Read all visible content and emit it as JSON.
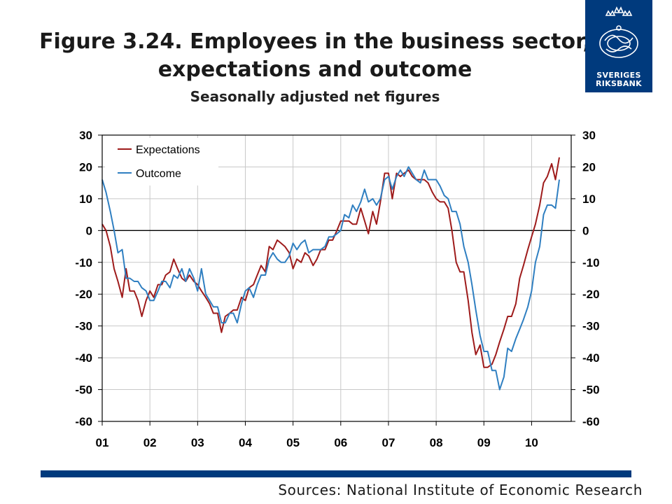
{
  "title_line1": "Figure 3.24. Employees in the business sector,",
  "title_line2": "expectations and outcome",
  "subtitle": "Seasonally adjusted net figures",
  "logo": {
    "line1": "SVERIGES",
    "line2": "RIKSBANK"
  },
  "source": "Sources: National Institute of Economic Research",
  "colors": {
    "expectations": "#9e1b1b",
    "outcome": "#2f7fc1",
    "brand": "#003a7d",
    "grid": "#c8c8c8"
  },
  "chart_data": {
    "type": "line",
    "ylim": [
      -60,
      30
    ],
    "y_ticks": [
      30,
      20,
      10,
      0,
      -10,
      -20,
      -30,
      -40,
      -50,
      -60
    ],
    "y_tick_labels": [
      "30",
      "20",
      "10",
      "0",
      "-10",
      "-20",
      "-30",
      "-40",
      "-50",
      "-60"
    ],
    "x_ticks": [
      2001,
      2002,
      2003,
      2004,
      2005,
      2006,
      2007,
      2008,
      2009,
      2010
    ],
    "x_tick_labels": [
      "01",
      "02",
      "03",
      "04",
      "05",
      "06",
      "07",
      "08",
      "09",
      "10"
    ],
    "grid": true,
    "legend_position": "top-left",
    "series": [
      {
        "name": "Expectations",
        "color_key": "expectations",
        "points": [
          [
            2001.0,
            2
          ],
          [
            2001.08,
            0
          ],
          [
            2001.17,
            -5
          ],
          [
            2001.25,
            -12
          ],
          [
            2001.33,
            -16
          ],
          [
            2001.42,
            -21
          ],
          [
            2001.5,
            -12
          ],
          [
            2001.58,
            -19
          ],
          [
            2001.67,
            -19
          ],
          [
            2001.75,
            -22
          ],
          [
            2001.83,
            -27
          ],
          [
            2001.92,
            -22
          ],
          [
            2002.0,
            -19
          ],
          [
            2002.08,
            -21
          ],
          [
            2002.17,
            -17
          ],
          [
            2002.25,
            -17
          ],
          [
            2002.33,
            -14
          ],
          [
            2002.42,
            -13
          ],
          [
            2002.5,
            -9
          ],
          [
            2002.58,
            -12
          ],
          [
            2002.67,
            -15
          ],
          [
            2002.75,
            -16
          ],
          [
            2002.83,
            -14
          ],
          [
            2002.92,
            -16
          ],
          [
            2003.0,
            -17
          ],
          [
            2003.08,
            -19
          ],
          [
            2003.17,
            -21
          ],
          [
            2003.25,
            -23
          ],
          [
            2003.33,
            -26
          ],
          [
            2003.42,
            -26
          ],
          [
            2003.5,
            -32
          ],
          [
            2003.58,
            -27
          ],
          [
            2003.67,
            -26
          ],
          [
            2003.75,
            -25
          ],
          [
            2003.83,
            -25
          ],
          [
            2003.92,
            -21
          ],
          [
            2004.0,
            -22
          ],
          [
            2004.08,
            -18
          ],
          [
            2004.17,
            -17
          ],
          [
            2004.25,
            -14
          ],
          [
            2004.33,
            -11
          ],
          [
            2004.42,
            -13
          ],
          [
            2004.5,
            -5
          ],
          [
            2004.58,
            -6
          ],
          [
            2004.67,
            -3
          ],
          [
            2004.75,
            -4
          ],
          [
            2004.83,
            -5
          ],
          [
            2004.92,
            -7
          ],
          [
            2005.0,
            -12
          ],
          [
            2005.08,
            -9
          ],
          [
            2005.17,
            -10
          ],
          [
            2005.25,
            -7
          ],
          [
            2005.33,
            -8
          ],
          [
            2005.42,
            -11
          ],
          [
            2005.5,
            -9
          ],
          [
            2005.58,
            -6
          ],
          [
            2005.67,
            -6
          ],
          [
            2005.75,
            -3
          ],
          [
            2005.83,
            -3
          ],
          [
            2005.92,
            0
          ],
          [
            2006.0,
            3
          ],
          [
            2006.08,
            3
          ],
          [
            2006.17,
            3
          ],
          [
            2006.25,
            2
          ],
          [
            2006.33,
            2
          ],
          [
            2006.42,
            7
          ],
          [
            2006.5,
            3
          ],
          [
            2006.58,
            -1
          ],
          [
            2006.67,
            6
          ],
          [
            2006.75,
            2
          ],
          [
            2006.83,
            9
          ],
          [
            2006.92,
            18
          ],
          [
            2007.0,
            18
          ],
          [
            2007.08,
            10
          ],
          [
            2007.17,
            18
          ],
          [
            2007.25,
            17
          ],
          [
            2007.33,
            18
          ],
          [
            2007.42,
            19
          ],
          [
            2007.5,
            17
          ],
          [
            2007.58,
            16
          ],
          [
            2007.67,
            16
          ],
          [
            2007.75,
            16
          ],
          [
            2007.83,
            15
          ],
          [
            2007.92,
            12
          ],
          [
            2008.0,
            10
          ],
          [
            2008.08,
            9
          ],
          [
            2008.17,
            9
          ],
          [
            2008.25,
            7
          ],
          [
            2008.33,
            0
          ],
          [
            2008.42,
            -10
          ],
          [
            2008.5,
            -13
          ],
          [
            2008.58,
            -13
          ],
          [
            2008.67,
            -22
          ],
          [
            2008.75,
            -32
          ],
          [
            2008.83,
            -39
          ],
          [
            2008.92,
            -36
          ],
          [
            2009.0,
            -43
          ],
          [
            2009.08,
            -43
          ],
          [
            2009.17,
            -42
          ],
          [
            2009.25,
            -39
          ],
          [
            2009.33,
            -35
          ],
          [
            2009.42,
            -31
          ],
          [
            2009.5,
            -27
          ],
          [
            2009.58,
            -27
          ],
          [
            2009.67,
            -23
          ],
          [
            2009.75,
            -15
          ],
          [
            2009.83,
            -11
          ],
          [
            2009.92,
            -6
          ],
          [
            2010.0,
            -2
          ],
          [
            2010.08,
            2
          ],
          [
            2010.17,
            8
          ],
          [
            2010.25,
            15
          ],
          [
            2010.33,
            17
          ],
          [
            2010.42,
            21
          ],
          [
            2010.5,
            16
          ],
          [
            2010.58,
            23
          ]
        ]
      },
      {
        "name": "Outcome",
        "color_key": "outcome",
        "points": [
          [
            2001.0,
            16
          ],
          [
            2001.08,
            12
          ],
          [
            2001.17,
            6
          ],
          [
            2001.25,
            0
          ],
          [
            2001.33,
            -7
          ],
          [
            2001.42,
            -6
          ],
          [
            2001.5,
            -15
          ],
          [
            2001.58,
            -15
          ],
          [
            2001.67,
            -16
          ],
          [
            2001.75,
            -16
          ],
          [
            2001.83,
            -18
          ],
          [
            2001.92,
            -19
          ],
          [
            2002.0,
            -22
          ],
          [
            2002.08,
            -22
          ],
          [
            2002.17,
            -19
          ],
          [
            2002.25,
            -16
          ],
          [
            2002.33,
            -16
          ],
          [
            2002.42,
            -18
          ],
          [
            2002.5,
            -14
          ],
          [
            2002.58,
            -15
          ],
          [
            2002.67,
            -12
          ],
          [
            2002.75,
            -16
          ],
          [
            2002.83,
            -12
          ],
          [
            2002.92,
            -15
          ],
          [
            2003.0,
            -19
          ],
          [
            2003.08,
            -12
          ],
          [
            2003.17,
            -20
          ],
          [
            2003.25,
            -22
          ],
          [
            2003.33,
            -24
          ],
          [
            2003.42,
            -24
          ],
          [
            2003.5,
            -29
          ],
          [
            2003.58,
            -29
          ],
          [
            2003.67,
            -26
          ],
          [
            2003.75,
            -26
          ],
          [
            2003.83,
            -29
          ],
          [
            2003.92,
            -23
          ],
          [
            2004.0,
            -19
          ],
          [
            2004.08,
            -18
          ],
          [
            2004.17,
            -21
          ],
          [
            2004.25,
            -17
          ],
          [
            2004.33,
            -14
          ],
          [
            2004.42,
            -14
          ],
          [
            2004.5,
            -9
          ],
          [
            2004.58,
            -7
          ],
          [
            2004.67,
            -9
          ],
          [
            2004.75,
            -10
          ],
          [
            2004.83,
            -10
          ],
          [
            2004.92,
            -8
          ],
          [
            2005.0,
            -4
          ],
          [
            2005.08,
            -6
          ],
          [
            2005.17,
            -4
          ],
          [
            2005.25,
            -3
          ],
          [
            2005.33,
            -7
          ],
          [
            2005.42,
            -6
          ],
          [
            2005.5,
            -6
          ],
          [
            2005.58,
            -6
          ],
          [
            2005.67,
            -5
          ],
          [
            2005.75,
            -2
          ],
          [
            2005.83,
            -2
          ],
          [
            2005.92,
            -1
          ],
          [
            2006.0,
            0
          ],
          [
            2006.08,
            5
          ],
          [
            2006.17,
            4
          ],
          [
            2006.25,
            8
          ],
          [
            2006.33,
            6
          ],
          [
            2006.42,
            9
          ],
          [
            2006.5,
            13
          ],
          [
            2006.58,
            9
          ],
          [
            2006.67,
            10
          ],
          [
            2006.75,
            8
          ],
          [
            2006.83,
            10
          ],
          [
            2006.92,
            16
          ],
          [
            2007.0,
            17
          ],
          [
            2007.08,
            13
          ],
          [
            2007.17,
            17
          ],
          [
            2007.25,
            19
          ],
          [
            2007.33,
            17
          ],
          [
            2007.42,
            20
          ],
          [
            2007.5,
            18
          ],
          [
            2007.58,
            16
          ],
          [
            2007.67,
            15
          ],
          [
            2007.75,
            19
          ],
          [
            2007.83,
            16
          ],
          [
            2007.92,
            16
          ],
          [
            2008.0,
            16
          ],
          [
            2008.08,
            14
          ],
          [
            2008.17,
            11
          ],
          [
            2008.25,
            10
          ],
          [
            2008.33,
            6
          ],
          [
            2008.42,
            6
          ],
          [
            2008.5,
            2
          ],
          [
            2008.58,
            -5
          ],
          [
            2008.67,
            -10
          ],
          [
            2008.75,
            -17
          ],
          [
            2008.83,
            -25
          ],
          [
            2008.92,
            -33
          ],
          [
            2009.0,
            -38
          ],
          [
            2009.08,
            -38
          ],
          [
            2009.17,
            -44
          ],
          [
            2009.25,
            -44
          ],
          [
            2009.33,
            -50
          ],
          [
            2009.42,
            -46
          ],
          [
            2009.5,
            -37
          ],
          [
            2009.58,
            -38
          ],
          [
            2009.67,
            -34
          ],
          [
            2009.75,
            -31
          ],
          [
            2009.83,
            -28
          ],
          [
            2009.92,
            -24
          ],
          [
            2010.0,
            -19
          ],
          [
            2010.08,
            -10
          ],
          [
            2010.17,
            -5
          ],
          [
            2010.25,
            5
          ],
          [
            2010.33,
            8
          ],
          [
            2010.42,
            8
          ],
          [
            2010.5,
            7
          ],
          [
            2010.58,
            16
          ]
        ]
      }
    ]
  }
}
